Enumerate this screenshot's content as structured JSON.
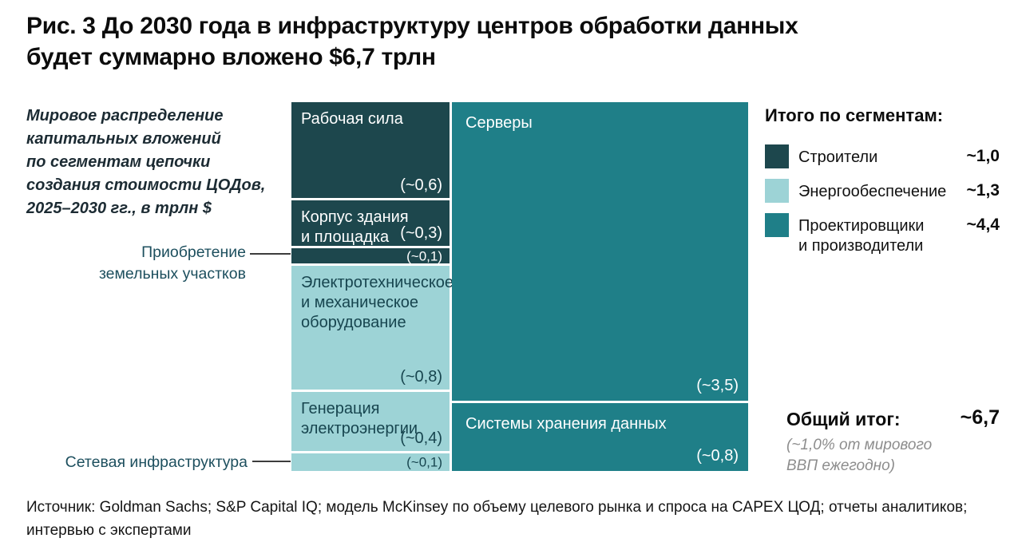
{
  "figure": {
    "title": "Рис. 3 До 2030 года в инфраструктуру центров обработки данных\nбудет суммарно вложено $6,7 трлн",
    "subtitle": "Мировое распределение\nкапитальных вложений\nпо сегментам цепочки\nсоздания стоимости ЦОДов,\n2025–2030 гг., в трлн $",
    "source": "Источник: Goldman Sachs; S&P Capital IQ; модель McKinsey по объему целевого рынка и спроса на CAPEX ЦОД; отчеты аналитиков;\nинтервью с экспертами"
  },
  "legend": {
    "title": "Итого по сегментам:",
    "entries": [
      {
        "label": "Строители",
        "value": 1.0,
        "value_display": "~1,0",
        "color": "#1d474d"
      },
      {
        "label": "Энергообеспечение",
        "value": 1.3,
        "value_display": "~1,3",
        "color": "#9dd3d6"
      },
      {
        "label": "Проектировщики\nи производители",
        "value": 4.4,
        "value_display": "~4,4",
        "color": "#1f7f88"
      }
    ]
  },
  "total": {
    "label": "Общий итог:",
    "value": 6.7,
    "value_display": "~6,7",
    "note": "(~1,0% от мирового\nВВП ежегодно)"
  },
  "chart_data": {
    "type": "treemap",
    "title": "До 2030 года в инфраструктуру центров обработки данных будет суммарно вложено $6,7 трлн",
    "unit": "трлн $",
    "period": "2025–2030",
    "total": 6.7,
    "total_note": "~1,0% от мирового ВВП ежегодно",
    "segments": [
      {
        "name": "Строители",
        "total": 1.0,
        "color": "#1d474d",
        "text_color": "#ffffff",
        "items": [
          {
            "label": "Рабочая сила",
            "label_display": "Рабочая сила",
            "value": 0.6,
            "value_display": "(~0,6)"
          },
          {
            "label": "Корпус здания и площадка",
            "label_display": "Корпус здания\nи площадка",
            "value": 0.3,
            "value_display": "(~0,3)"
          },
          {
            "label": "Приобретение земельных участков",
            "label_display": "Приобретение\nземельных участков",
            "value": 0.1,
            "value_display": "(~0,1)"
          }
        ]
      },
      {
        "name": "Энергообеспечение",
        "total": 1.3,
        "color": "#9dd3d6",
        "text_color": "#17454f",
        "items": [
          {
            "label": "Электротехническое и механическое оборудование",
            "label_display": "Электротехническое\nи механическое\nоборудование",
            "value": 0.8,
            "value_display": "(~0,8)"
          },
          {
            "label": "Генерация электроэнергии",
            "label_display": "Генерация\nэлектроэнергии",
            "value": 0.4,
            "value_display": "(~0,4)"
          },
          {
            "label": "Сетевая инфраструктура",
            "label_display": "Сетевая инфраструктура",
            "value": 0.1,
            "value_display": "(~0,1)"
          }
        ]
      },
      {
        "name": "Проектировщики и производители",
        "total": 4.4,
        "color": "#1f7f88",
        "text_color": "#ffffff",
        "items": [
          {
            "label": "Серверы",
            "label_display": "Серверы",
            "value": 3.5,
            "value_display": "(~3,5)"
          },
          {
            "label": "Системы хранения данных",
            "label_display": "Системы хранения данных",
            "value": 0.8,
            "value_display": "(~0,8)"
          }
        ]
      }
    ]
  }
}
